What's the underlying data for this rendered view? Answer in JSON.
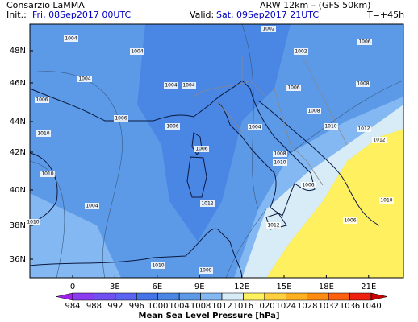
{
  "header": {
    "org": "Consarzio LaMMA",
    "model": "ARW 12km – (GFS 50km)",
    "init_label": "Init.:",
    "init": "Fri, 08Sep2017 00UTC",
    "valid_label": "Valid:",
    "valid": "Sat, 09Sep2017 21UTC",
    "lead": "T=+45h"
  },
  "map": {
    "lat_labels": [
      "48N",
      "46N",
      "44N",
      "42N",
      "40N",
      "38N",
      "36N"
    ],
    "lon_labels": [
      "0",
      "3E",
      "6E",
      "9E",
      "12E",
      "15E",
      "18E",
      "21E"
    ],
    "isobar_labels": [
      "1004",
      "1002",
      "1006",
      "1004",
      "1002",
      "1004",
      "1004",
      "1004",
      "1006",
      "1008",
      "1006",
      "1006",
      "1006",
      "1004",
      "1008",
      "1010",
      "1012",
      "1010",
      "1006",
      "1008",
      "1012",
      "1010",
      "1010",
      "1006",
      "1004",
      "1012",
      "1010",
      "1010",
      "1012",
      "1006",
      "1008",
      "1010"
    ]
  },
  "colorbar": {
    "title": "Mean Sea Level Pressure [hPa]",
    "ticks": [
      984,
      988,
      992,
      996,
      1000,
      1004,
      1008,
      1012,
      1016,
      1020,
      1024,
      1028,
      1032,
      1036,
      1040
    ],
    "colors": [
      "#a020f0",
      "#8a3cf0",
      "#7050f0",
      "#5a64f0",
      "#4674e8",
      "#4a86e4",
      "#5c9ae8",
      "#84b8f2",
      "#d8ecf8",
      "#fff060",
      "#ffd040",
      "#ffb020",
      "#ff8c10",
      "#ff6010",
      "#f02010",
      "#c80000"
    ]
  }
}
